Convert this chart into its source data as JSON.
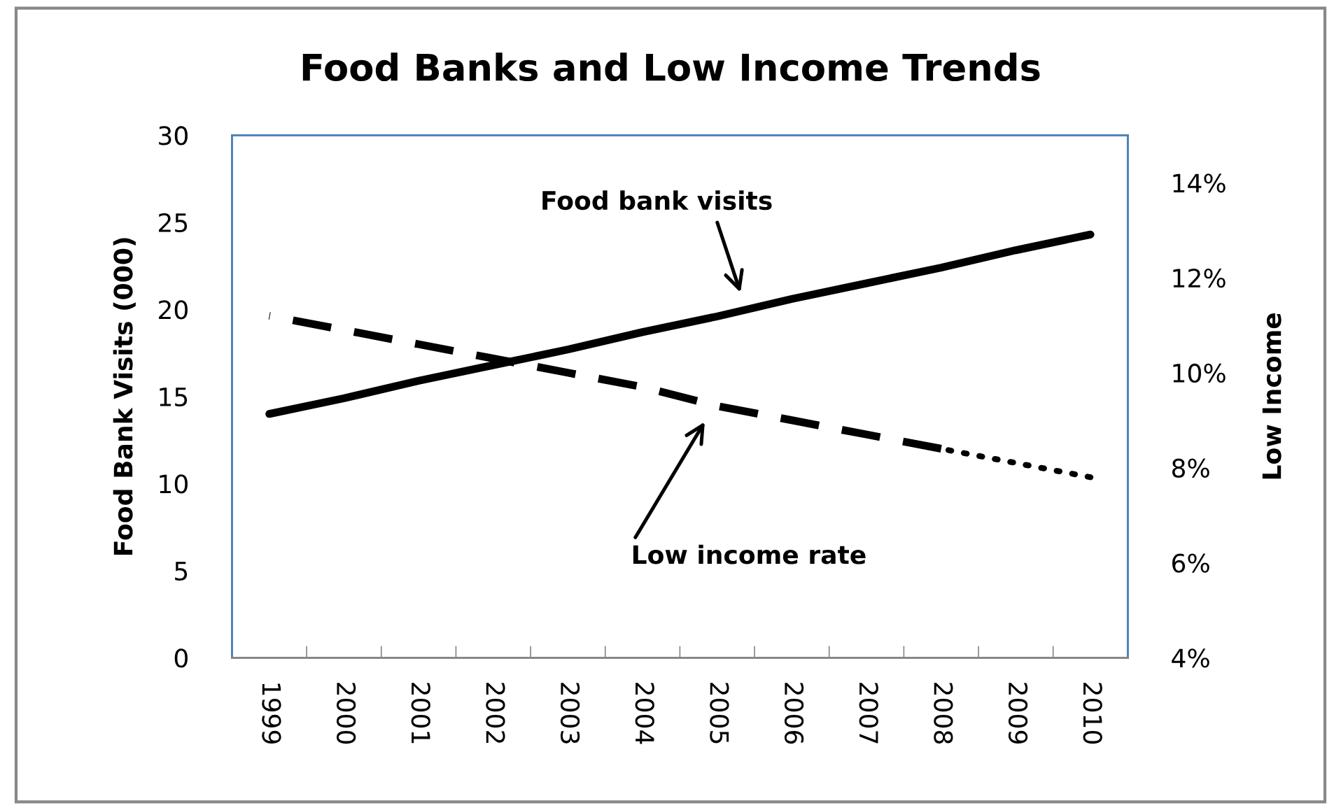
{
  "chart_data": {
    "type": "line",
    "title": "Food Banks and Low Income Trends",
    "ylabel": "Food Bank Visits (000)",
    "y2label": "Low Income",
    "categories": [
      "1999",
      "2000",
      "2001",
      "2002",
      "2003",
      "2004",
      "2005",
      "2006",
      "2007",
      "2008",
      "2009",
      "2010"
    ],
    "series": [
      {
        "color": "#000000",
        "line_style": "solid",
        "values": [
          14.0,
          14.9,
          15.9,
          16.8,
          17.7,
          18.7,
          19.6,
          20.6,
          21.5,
          22.4,
          23.4,
          24.3
        ]
      },
      {
        "color": "#000000",
        "line_style": "dashed",
        "axis": "y2",
        "values": [
          11.2,
          10.9,
          10.6,
          10.3,
          10.0,
          9.7,
          9.3,
          9.0,
          8.7,
          8.4,
          null,
          null
        ]
      },
      {
        "color": "#000000",
        "line_style": "dotted",
        "axis": "y2",
        "values": [
          null,
          null,
          null,
          null,
          null,
          null,
          null,
          null,
          null,
          8.4,
          8.1,
          7.8
        ]
      }
    ],
    "annotations": [
      "Food bank visits",
      "Low income rate"
    ],
    "ylim": [
      0,
      30
    ],
    "yticks": [
      0,
      5,
      10,
      15,
      20,
      25,
      30
    ],
    "y2lim": [
      4,
      15
    ],
    "y2ticks": [
      {
        "value": 4,
        "label": "4%"
      },
      {
        "value": 6,
        "label": "6%"
      },
      {
        "value": 8,
        "label": "8%"
      },
      {
        "value": 10,
        "label": "10%"
      },
      {
        "value": 12,
        "label": "12%"
      },
      {
        "value": 14,
        "label": "14%"
      }
    ],
    "grid": false,
    "legend": false,
    "marker": "none"
  }
}
